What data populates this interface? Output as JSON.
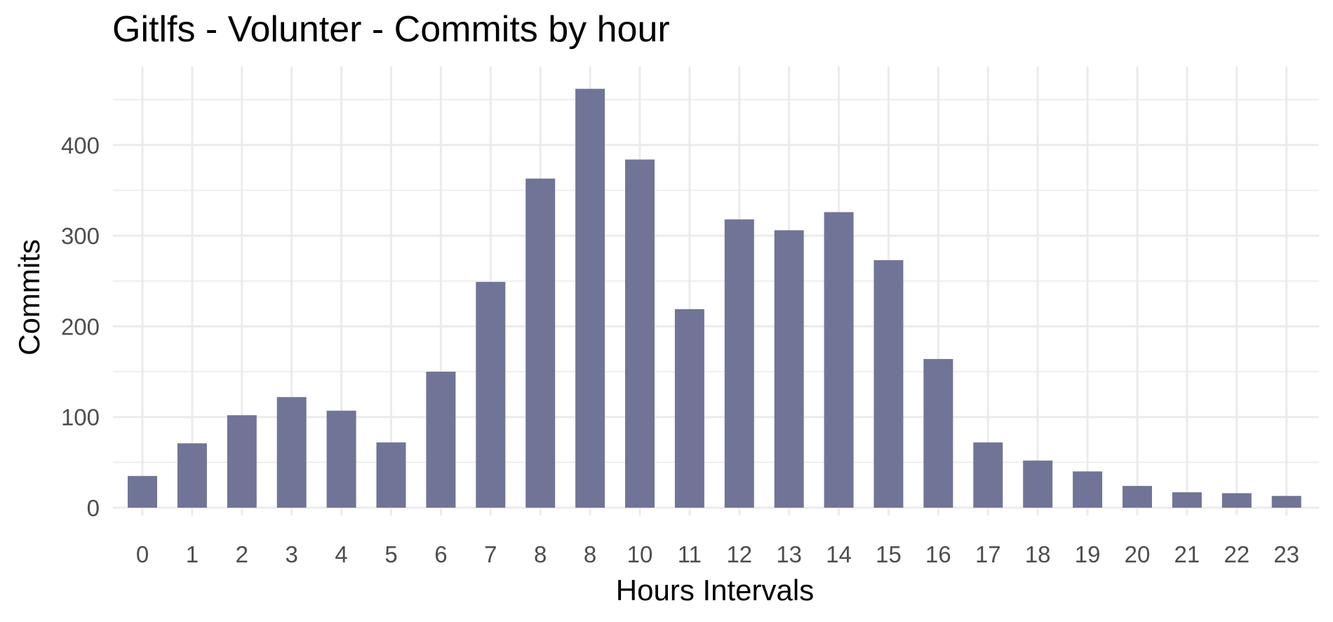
{
  "chart_data": {
    "type": "bar",
    "title": "Gitlfs - Volunter - Commits by hour",
    "xlabel": "Hours Intervals",
    "ylabel": "Commits",
    "categories": [
      "0",
      "1",
      "2",
      "3",
      "4",
      "5",
      "6",
      "7",
      "8",
      "8",
      "10",
      "11",
      "12",
      "13",
      "14",
      "15",
      "16",
      "17",
      "18",
      "19",
      "20",
      "21",
      "22",
      "23"
    ],
    "values": [
      35,
      71,
      102,
      122,
      107,
      72,
      150,
      249,
      363,
      462,
      384,
      219,
      318,
      306,
      326,
      273,
      164,
      72,
      52,
      40,
      24,
      17,
      16,
      13
    ],
    "yticks": [
      0,
      100,
      200,
      300,
      400
    ],
    "ylim": [
      0,
      480
    ],
    "grid": true,
    "bar_color": "#707597",
    "grid_color": "#ebebeb"
  }
}
